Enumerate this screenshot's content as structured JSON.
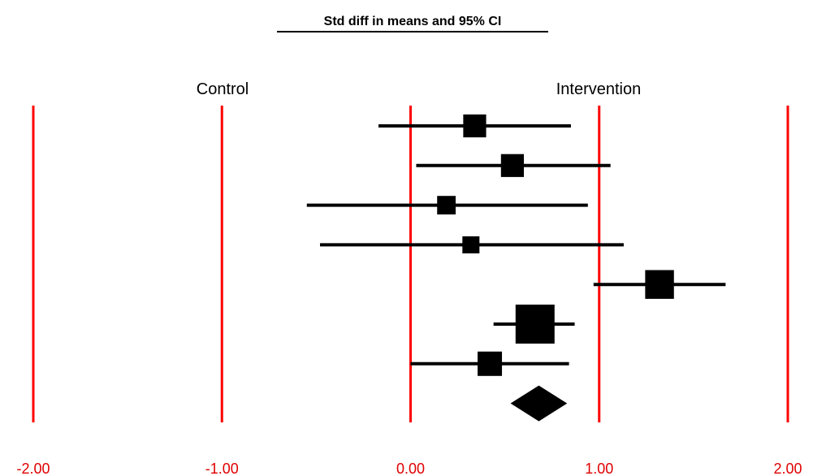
{
  "chart_data": {
    "type": "forest",
    "title": "Std diff in means and 95% CI",
    "left_label": "Control",
    "right_label": "Intervention",
    "xlim": [
      -2.0,
      2.0
    ],
    "gridlines": [
      -2.0,
      -1.0,
      0.0,
      1.0,
      2.0
    ],
    "tick_labels": [
      "-2.00",
      "-1.00",
      "0.00",
      "1.00",
      "2.00"
    ],
    "grid_color": "#ff0000",
    "marker_color": "#000000",
    "studies": [
      {
        "estimate": 0.34,
        "ci_low": -0.17,
        "ci_high": 0.85,
        "weight": 0.45
      },
      {
        "estimate": 0.54,
        "ci_low": 0.03,
        "ci_high": 1.06,
        "weight": 0.45
      },
      {
        "estimate": 0.19,
        "ci_low": -0.55,
        "ci_high": 0.94,
        "weight": 0.3
      },
      {
        "estimate": 0.32,
        "ci_low": -0.48,
        "ci_high": 1.13,
        "weight": 0.25
      },
      {
        "estimate": 1.32,
        "ci_low": 0.97,
        "ci_high": 1.67,
        "weight": 0.65
      },
      {
        "estimate": 0.66,
        "ci_low": 0.44,
        "ci_high": 0.87,
        "weight": 1.0
      },
      {
        "estimate": 0.42,
        "ci_low": 0.0,
        "ci_high": 0.84,
        "weight": 0.5
      }
    ],
    "summary": {
      "estimate": 0.68,
      "ci_low": 0.53,
      "ci_high": 0.83
    }
  }
}
